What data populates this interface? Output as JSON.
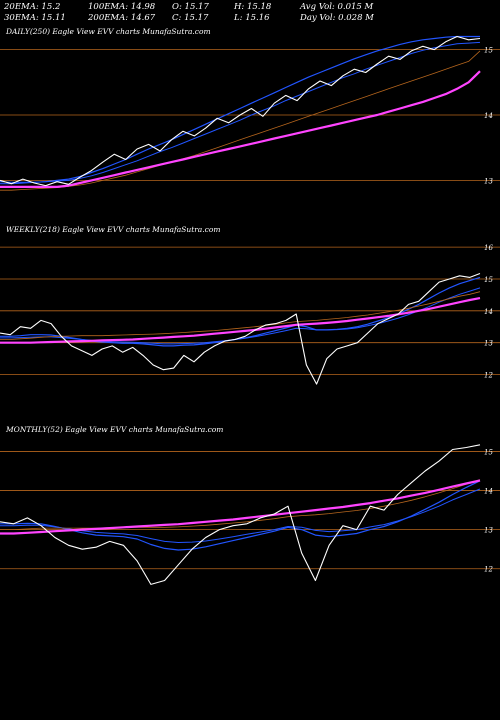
{
  "header": {
    "row1": [
      {
        "label": "20EMA: 15.2"
      },
      {
        "label": "100EMA: 14.98"
      },
      {
        "label": "O: 15.17"
      },
      {
        "label": "H: 15.18"
      },
      {
        "label": "Avg Vol: 0.015 M"
      }
    ],
    "row2": [
      {
        "label": "30EMA: 15.11"
      },
      {
        "label": "200EMA: 14.67"
      },
      {
        "label": "C: 15.17"
      },
      {
        "label": "L: 15.16"
      },
      {
        "label": "Day Vol: 0.028  M"
      }
    ]
  },
  "colors": {
    "background": "#000000",
    "grid": "#b5651d",
    "price": "#ffffff",
    "ema_short": "#2255ff",
    "ema_long": "#ff44ff"
  },
  "chart_data": [
    {
      "type": "line",
      "title": "DAILY(250) Eagle  View  EVV charts MunafaSutra.com",
      "price_ticks": [
        "15",
        "14",
        "13"
      ],
      "y_range": [
        12.7,
        15.3
      ],
      "price": [
        13.0,
        12.95,
        13.02,
        12.96,
        12.92,
        12.98,
        12.94,
        13.05,
        13.15,
        13.28,
        13.4,
        13.32,
        13.48,
        13.55,
        13.45,
        13.62,
        13.75,
        13.68,
        13.8,
        13.95,
        13.88,
        14.0,
        14.1,
        13.98,
        14.18,
        14.3,
        14.22,
        14.4,
        14.52,
        14.45,
        14.6,
        14.7,
        14.65,
        14.78,
        14.9,
        14.85,
        14.98,
        15.05,
        15.0,
        15.12,
        15.2,
        15.15,
        15.17
      ],
      "series": [
        {
          "values": [
            12.95,
            12.95,
            12.96,
            12.97,
            12.98,
            13.0,
            13.02,
            13.06,
            13.12,
            13.18,
            13.25,
            13.32,
            13.4,
            13.48,
            13.55,
            13.62,
            13.7,
            13.78,
            13.86,
            13.94,
            14.02,
            14.1,
            14.18,
            14.26,
            14.34,
            14.42,
            14.5,
            14.58,
            14.65,
            14.72,
            14.79,
            14.86,
            14.92,
            14.98,
            15.03,
            15.08,
            15.12,
            15.15,
            15.17,
            15.19,
            15.2,
            15.2,
            15.2
          ]
        },
        {
          "values": [
            12.98,
            12.97,
            12.97,
            12.97,
            12.98,
            12.99,
            13.0,
            13.03,
            13.07,
            13.12,
            13.18,
            13.24,
            13.3,
            13.37,
            13.44,
            13.5,
            13.57,
            13.64,
            13.71,
            13.78,
            13.85,
            13.92,
            14.0,
            14.07,
            14.14,
            14.22,
            14.29,
            14.36,
            14.43,
            14.5,
            14.57,
            14.63,
            14.7,
            14.76,
            14.82,
            14.88,
            14.94,
            14.99,
            15.03,
            15.06,
            15.09,
            15.1,
            15.11
          ]
        },
        {
          "values": [
            12.85,
            12.85,
            12.86,
            12.87,
            12.88,
            12.89,
            12.91,
            12.93,
            12.96,
            13.0,
            13.04,
            13.08,
            13.13,
            13.18,
            13.23,
            13.28,
            13.33,
            13.38,
            13.44,
            13.5,
            13.56,
            13.62,
            13.68,
            13.74,
            13.8,
            13.86,
            13.92,
            13.98,
            14.04,
            14.1,
            14.16,
            14.22,
            14.28,
            14.34,
            14.4,
            14.46,
            14.52,
            14.58,
            14.64,
            14.7,
            14.76,
            14.82,
            14.98
          ]
        },
        {
          "values": [
            12.9,
            12.9,
            12.9,
            12.9,
            12.9,
            12.9,
            12.92,
            12.96,
            13.0,
            13.04,
            13.08,
            13.12,
            13.16,
            13.2,
            13.24,
            13.28,
            13.32,
            13.36,
            13.4,
            13.44,
            13.48,
            13.52,
            13.56,
            13.6,
            13.64,
            13.68,
            13.72,
            13.76,
            13.8,
            13.84,
            13.88,
            13.92,
            13.96,
            14.0,
            14.05,
            14.1,
            14.15,
            14.2,
            14.26,
            14.32,
            14.4,
            14.5,
            14.67
          ]
        }
      ]
    },
    {
      "type": "line",
      "title": "WEEKLY(218) Eagle  View  EVV charts MunafaSutra.com",
      "price_ticks": [
        "16",
        "15",
        "14",
        "13",
        "12"
      ],
      "y_range": [
        11.2,
        16.6
      ],
      "price": [
        13.3,
        13.25,
        13.5,
        13.45,
        13.7,
        13.6,
        13.2,
        12.9,
        12.75,
        12.6,
        12.8,
        12.9,
        12.7,
        12.85,
        12.6,
        12.3,
        12.15,
        12.2,
        12.6,
        12.4,
        12.7,
        12.9,
        13.05,
        13.1,
        13.2,
        13.4,
        13.55,
        13.6,
        13.7,
        13.9,
        12.3,
        11.7,
        12.5,
        12.8,
        12.9,
        13.0,
        13.3,
        13.6,
        13.75,
        13.9,
        14.2,
        14.3,
        14.6,
        14.9,
        15.0,
        15.1,
        15.05,
        15.17
      ],
      "series": [
        {
          "values": [
            13.2,
            13.2,
            13.22,
            13.25,
            13.25,
            13.24,
            13.2,
            13.15,
            13.1,
            13.05,
            13.02,
            13.0,
            12.98,
            12.98,
            12.96,
            12.93,
            12.9,
            12.9,
            12.92,
            12.93,
            12.96,
            13.0,
            13.05,
            13.1,
            13.15,
            13.22,
            13.3,
            13.38,
            13.46,
            13.55,
            13.5,
            13.4,
            13.4,
            13.42,
            13.45,
            13.5,
            13.58,
            13.68,
            13.78,
            13.9,
            14.05,
            14.2,
            14.38,
            14.56,
            14.72,
            14.85,
            14.95,
            15.05
          ]
        },
        {
          "values": [
            13.15,
            13.15,
            13.16,
            13.17,
            13.18,
            13.18,
            13.16,
            13.13,
            13.1,
            13.07,
            13.05,
            13.03,
            13.02,
            13.01,
            13.0,
            12.98,
            12.96,
            12.96,
            12.97,
            12.98,
            13.0,
            13.03,
            13.06,
            13.1,
            13.14,
            13.19,
            13.25,
            13.31,
            13.38,
            13.45,
            13.44,
            13.4,
            13.4,
            13.41,
            13.43,
            13.47,
            13.53,
            13.6,
            13.68,
            13.77,
            13.88,
            14.0,
            14.13,
            14.27,
            14.4,
            14.52,
            14.62,
            14.72
          ]
        },
        {
          "values": [
            13.1,
            13.1,
            13.12,
            13.14,
            13.17,
            13.19,
            13.2,
            13.21,
            13.22,
            13.22,
            13.22,
            13.23,
            13.24,
            13.25,
            13.26,
            13.27,
            13.28,
            13.3,
            13.32,
            13.34,
            13.36,
            13.38,
            13.41,
            13.44,
            13.47,
            13.5,
            13.54,
            13.58,
            13.62,
            13.66,
            13.68,
            13.7,
            13.73,
            13.76,
            13.79,
            13.83,
            13.87,
            13.92,
            13.97,
            14.02,
            14.08,
            14.15,
            14.22,
            14.3,
            14.38,
            14.46,
            14.52,
            14.6
          ]
        },
        {
          "values": [
            13.0,
            13.0,
            13.0,
            13.0,
            13.01,
            13.02,
            13.03,
            13.04,
            13.05,
            13.06,
            13.07,
            13.08,
            13.09,
            13.1,
            13.12,
            13.14,
            13.16,
            13.18,
            13.2,
            13.22,
            13.25,
            13.28,
            13.31,
            13.34,
            13.37,
            13.4,
            13.44,
            13.48,
            13.52,
            13.56,
            13.58,
            13.6,
            13.62,
            13.65,
            13.68,
            13.72,
            13.76,
            13.8,
            13.84,
            13.89,
            13.94,
            14.0,
            14.06,
            14.13,
            14.2,
            14.27,
            14.34,
            14.4
          ]
        }
      ]
    },
    {
      "type": "line",
      "title": "MONTHLY(52) Eagle  View  EVV charts MunafaSutra.com",
      "price_ticks": [
        "15",
        "14",
        "13",
        "12"
      ],
      "y_range": [
        11.2,
        15.6
      ],
      "price": [
        13.2,
        13.15,
        13.3,
        13.1,
        12.8,
        12.6,
        12.5,
        12.55,
        12.7,
        12.6,
        12.2,
        11.6,
        11.7,
        12.1,
        12.5,
        12.8,
        13.0,
        13.1,
        13.15,
        13.3,
        13.4,
        13.6,
        12.4,
        11.7,
        12.6,
        13.1,
        13.0,
        13.6,
        13.5,
        13.9,
        14.2,
        14.5,
        14.75,
        15.05,
        15.1,
        15.17
      ],
      "series": [
        {
          "values": [
            13.15,
            13.15,
            13.16,
            13.15,
            13.08,
            13.0,
            12.92,
            12.86,
            12.84,
            12.82,
            12.76,
            12.62,
            12.52,
            12.48,
            12.5,
            12.56,
            12.64,
            12.72,
            12.8,
            12.88,
            12.96,
            13.06,
            13.0,
            12.86,
            12.82,
            12.86,
            12.9,
            13.0,
            13.08,
            13.2,
            13.35,
            13.52,
            13.7,
            13.9,
            14.08,
            14.25
          ]
        },
        {
          "values": [
            13.1,
            13.1,
            13.11,
            13.11,
            13.07,
            13.02,
            12.97,
            12.93,
            12.91,
            12.89,
            12.85,
            12.77,
            12.7,
            12.67,
            12.68,
            12.71,
            12.76,
            12.82,
            12.88,
            12.94,
            13.0,
            13.08,
            13.06,
            12.98,
            12.95,
            12.97,
            13.0,
            13.07,
            13.13,
            13.22,
            13.33,
            13.46,
            13.6,
            13.76,
            13.9,
            14.04
          ]
        },
        {
          "values": [
            13.0,
            13.0,
            13.02,
            13.04,
            13.04,
            13.04,
            13.04,
            13.04,
            13.05,
            13.06,
            13.06,
            13.06,
            13.06,
            13.07,
            13.09,
            13.11,
            13.14,
            13.17,
            13.2,
            13.24,
            13.28,
            13.33,
            13.36,
            13.38,
            13.41,
            13.45,
            13.49,
            13.54,
            13.6,
            13.67,
            13.75,
            13.84,
            13.94,
            14.05,
            14.16,
            14.28
          ]
        },
        {
          "values": [
            12.9,
            12.9,
            12.92,
            12.94,
            12.96,
            12.98,
            13.0,
            13.02,
            13.04,
            13.06,
            13.08,
            13.1,
            13.12,
            13.14,
            13.17,
            13.2,
            13.23,
            13.26,
            13.3,
            13.34,
            13.38,
            13.42,
            13.46,
            13.5,
            13.54,
            13.58,
            13.63,
            13.68,
            13.74,
            13.8,
            13.87,
            13.94,
            14.02,
            14.1,
            14.18,
            14.26
          ]
        }
      ]
    }
  ]
}
